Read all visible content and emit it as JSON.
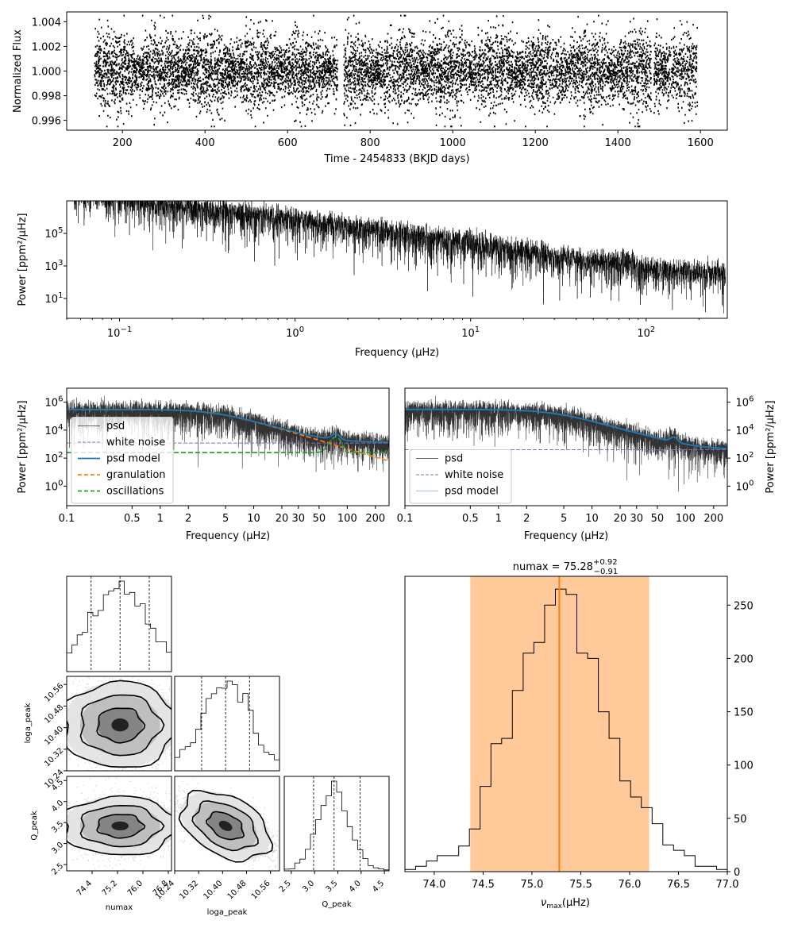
{
  "chart_data": [
    {
      "type": "scatter",
      "xlabel": "Time - 2454833 (BKJD days)",
      "ylabel": "Normalized Flux",
      "xlim": [
        65,
        1665
      ],
      "ylim": [
        0.9952,
        1.0048
      ],
      "xticks": [
        "200",
        "400",
        "600",
        "800",
        "1000",
        "1200",
        "1400",
        "1600"
      ],
      "yticks": [
        "0.996",
        "0.998",
        "1.000",
        "1.002",
        "1.004"
      ],
      "series": [
        {
          "x_range": [
            131,
            1591
          ],
          "y_center": 1.0,
          "y_spread": 0.0012,
          "gaps": [
            [
              720,
              735
            ],
            [
              1480,
              1486
            ]
          ]
        }
      ]
    },
    {
      "type": "line",
      "xlabel": "Frequency (μHz)",
      "ylabel": "Power [ppm²/μHz]",
      "x_scale": "log",
      "y_scale": "log",
      "xlim": [
        0.05,
        290
      ],
      "ylim": [
        0.6,
        10000000
      ],
      "xticks": [
        "10",
        "10",
        "10",
        "10"
      ],
      "xtick_exps": [
        "−1",
        "0",
        "1",
        "2"
      ],
      "yticks": [
        "10",
        "10",
        "10"
      ],
      "ytick_exps": [
        "1",
        "3",
        "5"
      ]
    },
    {
      "type": "line",
      "xlabel": "Frequency (μHz)",
      "ylabel": "Power [ppm²/μHz]",
      "x_scale": "log",
      "y_scale": "log",
      "xlim": [
        0.1,
        280
      ],
      "ylim": [
        0.04,
        10000000
      ],
      "xticks": [
        "0.1",
        "0.5",
        "1",
        "2",
        "5",
        "10",
        "20",
        "30",
        "50",
        "100",
        "200"
      ],
      "yticks": [
        "10",
        "10",
        "10",
        "10"
      ],
      "ytick_exps": [
        "0",
        "2",
        "4",
        "6"
      ],
      "legend": [
        "psd",
        "white noise",
        "psd model",
        "granulation",
        "oscillations"
      ],
      "legend_loc": "lower-left",
      "series": [
        {
          "name": "white noise",
          "value": 1200,
          "color": "#9467bd"
        },
        {
          "name": "granulation",
          "color": "#ff7f0e",
          "amplitude": 300000,
          "knee": 4
        },
        {
          "name": "oscillations",
          "color": "#2ca02c",
          "base": 250,
          "peak_freq": 75.28,
          "peak": 3000
        },
        {
          "name": "psd model",
          "color": "#1f77b4"
        }
      ]
    },
    {
      "type": "line",
      "xlabel": "Frequency (μHz)",
      "ylabel": "Power [ppm²/μHz]",
      "x_scale": "log",
      "y_scale": "log",
      "xlim": [
        0.1,
        280
      ],
      "ylim": [
        0.04,
        10000000
      ],
      "xticks": [
        "0.1",
        "0.5",
        "1",
        "2",
        "5",
        "10",
        "20",
        "30",
        "50",
        "100",
        "200"
      ],
      "yticks": [
        "10",
        "10",
        "10",
        "10"
      ],
      "ytick_exps": [
        "0",
        "2",
        "4",
        "6"
      ],
      "legend": [
        "psd",
        "white noise",
        "psd model"
      ],
      "legend_loc": "lower-left",
      "series": [
        {
          "name": "white noise",
          "value": 400,
          "color": "#9467bd"
        },
        {
          "name": "psd model",
          "color": "#1f77b4"
        }
      ]
    },
    {
      "type": "scatter",
      "subtype": "corner",
      "parameters": [
        "numax",
        "loga_peak",
        "Q_peak"
      ],
      "means": [
        75.28,
        10.41,
        3.42
      ],
      "stds": [
        0.9,
        0.08,
        0.35
      ],
      "quantiles": {
        "numax": [
          74.37,
          75.28,
          76.2
        ],
        "loga_peak": [
          10.33,
          10.41,
          10.49
        ],
        "Q_peak": [
          2.98,
          3.42,
          3.98
        ]
      },
      "ranges": {
        "numax": [
          73.6,
          76.9
        ],
        "loga_peak": [
          10.24,
          10.59
        ],
        "Q_peak": [
          2.35,
          4.6
        ]
      },
      "ticks": {
        "numax": [
          "74.4",
          "75.2",
          "76.0",
          "76.8"
        ],
        "loga_peak": [
          "10.24",
          "10.32",
          "10.40",
          "10.48",
          "10.56"
        ],
        "Q_peak": [
          "2.5",
          "3.0",
          "3.5",
          "4.0",
          "4.5"
        ]
      },
      "tick_values": {
        "numax": [
          74.4,
          75.2,
          76.0,
          76.8
        ],
        "loga_peak": [
          10.24,
          10.32,
          10.4,
          10.48,
          10.56
        ],
        "Q_peak": [
          2.5,
          3.0,
          3.5,
          4.0,
          4.5
        ]
      }
    },
    {
      "type": "bar",
      "subtype": "histogram",
      "title": "numax = 75.28",
      "title_sup": "+0.92",
      "title_sub": "−0.91",
      "xlabel_main": "ν",
      "xlabel_sub": "max",
      "xlabel_rest": "(μHz)",
      "xlim": [
        73.7,
        77.0
      ],
      "ylim": [
        0,
        277
      ],
      "xticks": [
        "74.0",
        "74.5",
        "75.0",
        "75.5",
        "76.0",
        "76.5",
        "77.0"
      ],
      "yticks": [
        "0",
        "50",
        "100",
        "150",
        "200",
        "250"
      ],
      "bin_edges": [
        73.7,
        73.81,
        73.92,
        74.03,
        74.14,
        74.25,
        74.36,
        74.47,
        74.58,
        74.69,
        74.8,
        74.91,
        75.02,
        75.13,
        75.24,
        75.35,
        75.46,
        75.57,
        75.68,
        75.79,
        75.9,
        76.01,
        76.12,
        76.23,
        76.34,
        76.45,
        76.56,
        76.67,
        76.78,
        76.89,
        77.0
      ],
      "counts": [
        2,
        5,
        10,
        15,
        15,
        24,
        40,
        80,
        120,
        125,
        170,
        205,
        215,
        250,
        265,
        260,
        205,
        200,
        150,
        125,
        85,
        70,
        60,
        45,
        25,
        20,
        15,
        5,
        5,
        2
      ],
      "median": 75.28,
      "band": [
        74.37,
        76.2
      ],
      "band_color": "#ff7f0e",
      "median_color": "#ff7f0e"
    }
  ]
}
